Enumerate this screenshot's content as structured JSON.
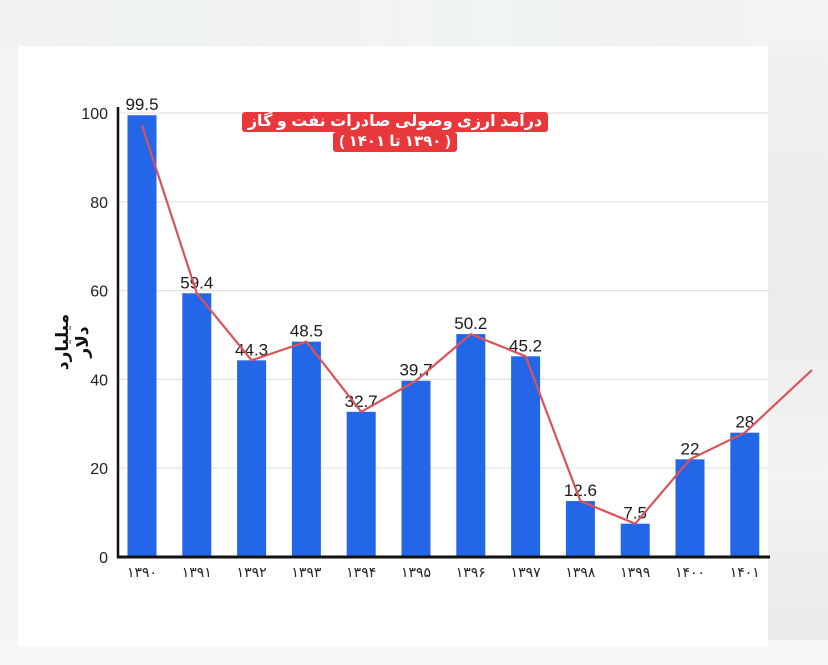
{
  "chart_data": {
    "type": "bar",
    "title": "درآمد ارزی وصولی صادرات نفت و گاز",
    "subtitle": "( ۱۳۹۰ تا ۱۴۰۱ )",
    "xlabel": "",
    "ylabel": "میلیارد دلار",
    "categories": [
      "۱۳۹۰",
      "۱۳۹۱",
      "۱۳۹۲",
      "۱۳۹۳",
      "۱۳۹۴",
      "۱۳۹۵",
      "۱۳۹۶",
      "۱۳۹۷",
      "۱۳۹۸",
      "۱۳۹۹",
      "۱۴۰۰",
      "۱۴۰۱"
    ],
    "values": [
      99.5,
      59.4,
      44.3,
      48.5,
      32.7,
      39.7,
      50.2,
      45.2,
      12.6,
      7.5,
      22,
      28
    ],
    "value_labels": [
      "99.5",
      "59.4",
      "44.3",
      "48.5",
      "32.7",
      "39.7",
      "50.2",
      "45.2",
      "12.6",
      "7.5",
      "22",
      "28"
    ],
    "overlay_line": {
      "type": "line",
      "values": [
        99.5,
        59.4,
        44.3,
        48.5,
        32.7,
        39.7,
        50.2,
        45.2,
        12.6,
        7.5,
        22,
        28
      ],
      "extends_trend_upward": true
    },
    "ylim": [
      0,
      100
    ],
    "yticks": [
      0,
      20,
      40,
      60,
      80,
      100
    ],
    "grid": true,
    "legend": null,
    "colors": {
      "bar": "#2466e8",
      "line": "#d9535a",
      "title_bg": "#e8383b",
      "title_text": "#ffffff",
      "axis": "#111111",
      "grid": "#e3e3e3"
    }
  },
  "header": {
    "title_line1": "درآمد ارزی وصولی صادرات نفت و گاز",
    "title_line2": "( ۱۳۹۰ تا ۱۴۰۱ )"
  },
  "axis": {
    "y_label": "میلیارد دلار"
  }
}
